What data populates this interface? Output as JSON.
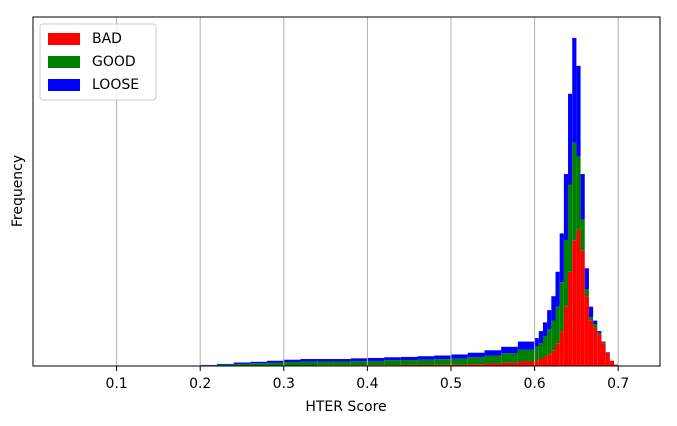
{
  "chart_data": {
    "type": "histogram",
    "stacked": true,
    "x_label": "HTER Score",
    "y_label": "Frequency",
    "xlim": [
      0,
      0.75
    ],
    "ylim": [
      0,
      100
    ],
    "xticks": [
      0.1,
      0.2,
      0.3,
      0.4,
      0.5,
      0.6,
      0.7
    ],
    "grid": "x",
    "legend": "upper left",
    "bins": [
      0.2,
      0.22,
      0.24,
      0.26,
      0.28,
      0.3,
      0.32,
      0.34,
      0.36,
      0.38,
      0.4,
      0.42,
      0.44,
      0.46,
      0.48,
      0.5,
      0.52,
      0.54,
      0.56,
      0.58,
      0.6,
      0.605,
      0.61,
      0.615,
      0.62,
      0.625,
      0.63,
      0.635,
      0.64,
      0.645,
      0.65,
      0.655,
      0.66,
      0.665,
      0.67,
      0.675,
      0.68,
      0.685,
      0.69,
      0.695,
      0.7
    ],
    "series": [
      {
        "name": "BAD",
        "color": "#ff0000",
        "values": [
          0.05,
          0.1,
          0.1,
          0.1,
          0.1,
          0.15,
          0.15,
          0.2,
          0.2,
          0.2,
          0.25,
          0.25,
          0.3,
          0.3,
          0.35,
          0.4,
          0.5,
          0.7,
          0.9,
          1.3,
          1.6,
          2,
          2.6,
          3.4,
          4.5,
          6.5,
          10,
          17,
          27,
          36,
          39,
          33,
          20,
          13,
          11,
          9,
          6.5,
          3.8,
          1.5,
          0.4
        ]
      },
      {
        "name": "GOOD",
        "color": "#008000",
        "values": [
          0.15,
          0.3,
          0.5,
          0.7,
          0.8,
          1.0,
          1.1,
          1.1,
          1.1,
          1.2,
          1.2,
          1.4,
          1.4,
          1.5,
          1.6,
          1.7,
          2,
          2.3,
          2.8,
          3.4,
          3.9,
          4.5,
          5.9,
          7.1,
          8.5,
          10.5,
          14,
          19,
          25,
          28,
          21,
          9,
          2,
          1,
          1,
          0.5,
          0.3,
          0.1,
          0,
          0
        ]
      },
      {
        "name": "LOOSE",
        "color": "#0000ff",
        "values": [
          0.1,
          0.2,
          0.4,
          0.4,
          0.6,
          0.65,
          0.75,
          0.7,
          0.7,
          0.8,
          0.85,
          0.85,
          0.9,
          1.0,
          1.05,
          1.2,
          1.3,
          1.5,
          1.8,
          2.3,
          2.5,
          3.5,
          4,
          5.5,
          7,
          10,
          14,
          19,
          26,
          30,
          26,
          13,
          6,
          3,
          1,
          0.5,
          0.2,
          0.1,
          0,
          0
        ]
      }
    ]
  }
}
